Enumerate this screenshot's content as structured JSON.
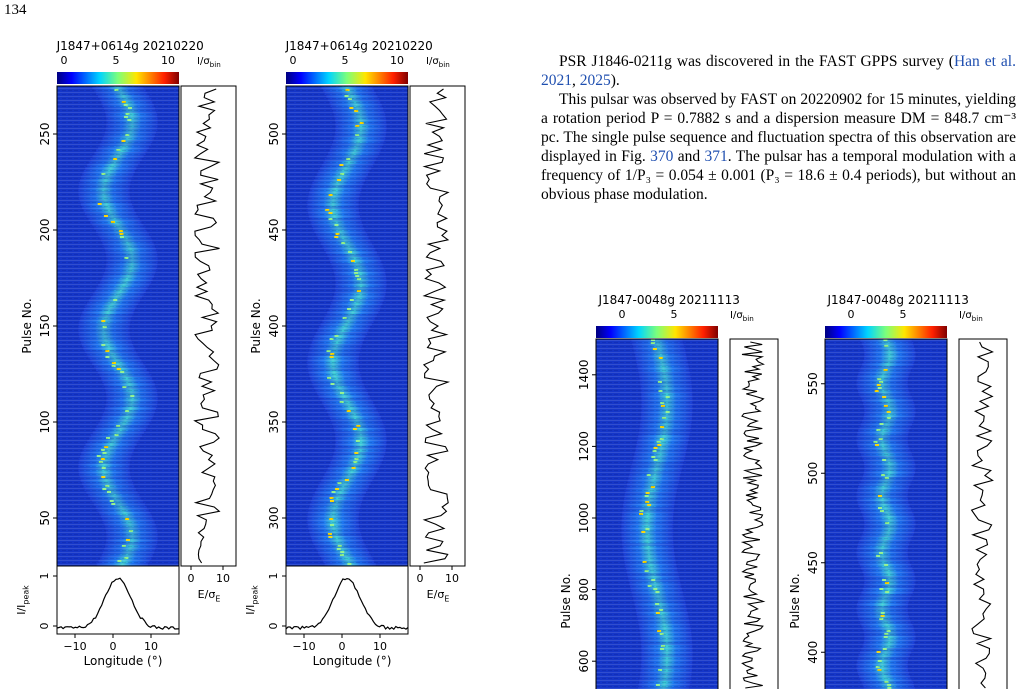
{
  "page_number": "134",
  "colorbar_ticks_a": [
    "0",
    "5",
    "10"
  ],
  "colorbar_ticks_b": [
    "0",
    "5"
  ],
  "colorbar_unit": "I/σ",
  "colorbar_unit_sub": "bin",
  "profile_ylabel": "I/I",
  "profile_ylabel_sub": "peak",
  "energy_xlabel": "E/σ",
  "energy_xlabel_sub": "E",
  "longitude_label": "Longitude (°)",
  "pulse_label": "Pulse No.",
  "figures_top": [
    {
      "title": "J1847+0614g  20210220",
      "pulse_ticks": [
        "50",
        "100",
        "150",
        "200",
        "250"
      ],
      "energy_ticks": [
        "0",
        "10"
      ],
      "profile_yticks": [
        "0",
        "1"
      ],
      "lon_ticks": [
        "−10",
        "0",
        "10"
      ]
    },
    {
      "title": "J1847+0614g  20210220",
      "pulse_ticks": [
        "300",
        "350",
        "400",
        "450",
        "500"
      ],
      "energy_ticks": [
        "0",
        "10"
      ],
      "profile_yticks": [
        "0",
        "1"
      ],
      "lon_ticks": [
        "−10",
        "0",
        "10"
      ]
    }
  ],
  "figures_bottom": [
    {
      "title": "J1847-0048g  20211113",
      "pulse_ticks": [
        "600",
        "800",
        "1000",
        "1200",
        "1400"
      ]
    },
    {
      "title": "J1847-0048g  20211113",
      "pulse_ticks": [
        "400",
        "450",
        "500",
        "550"
      ]
    }
  ],
  "text": {
    "p1_a": "PSR J1846-0211g was discovered in the FAST GPPS survey (",
    "p1_ref1": "Han et al. 2021",
    "p1_sep": ", ",
    "p1_ref2": "2025",
    "p1_b": ").",
    "p2_a": "This pulsar was observed by FAST on 20220902 for 15 minutes, yielding a rotation period P = 0.7882 s and a dispersion measure DM = 848.7 cm⁻³ pc. The single pulse sequence and fluctuation spectra of this observation are displayed in Fig. ",
    "p2_ref1": "370",
    "p2_and": " and ",
    "p2_ref2": "371",
    "p2_b": ". The pulsar has a temporal modulation with a frequency of 1/P₃ = 0.054 ± 0.001 (P₃ = 18.6 ± 0.4 periods), but without an obvious phase modulation."
  }
}
